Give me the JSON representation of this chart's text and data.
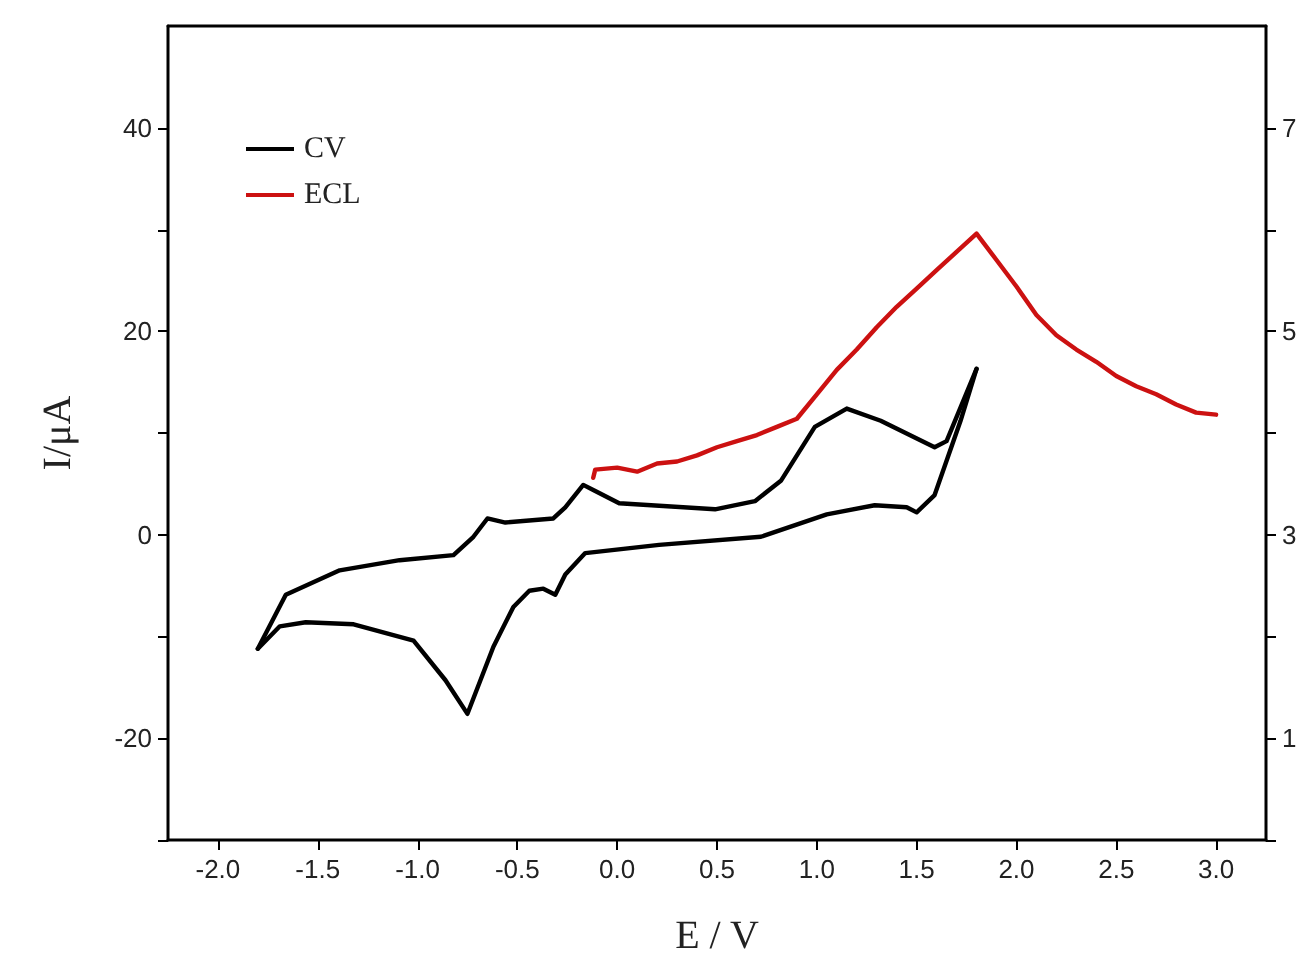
{
  "chart_data": {
    "type": "line",
    "xlabel": "E / V",
    "ylabel": "I/μA",
    "xlim": [
      -2.25,
      3.25
    ],
    "xticks": [
      {
        "value": -2,
        "label": "-2.0"
      },
      -1.5,
      {
        "value": -1,
        "label": "-1.0"
      },
      -0.5,
      {
        "value": 0,
        "label": "0.0"
      },
      0.5,
      {
        "value": 1,
        "label": "1.0"
      },
      1.5,
      {
        "value": 2,
        "label": "2.0"
      },
      2.5,
      {
        "value": 3,
        "label": "3.0"
      }
    ],
    "ylim": [
      -30,
      50
    ],
    "yticks": [
      {
        "value": -30,
        "label": null
      },
      -20,
      {
        "value": -10,
        "label": null
      },
      0,
      {
        "value": 10,
        "label": null
      },
      20,
      {
        "value": 30,
        "label": null
      },
      40
    ],
    "y2lim": [
      0,
      8
    ],
    "y2ticks": [
      {
        "value": 0,
        "label": null
      },
      1,
      {
        "value": 2,
        "label": null
      },
      3,
      {
        "value": 4,
        "label": null
      },
      5,
      {
        "value": 6,
        "label": null
      },
      7
    ],
    "grid": false,
    "legend": "top left",
    "marker": "none",
    "line_style": "solid",
    "series": [
      {
        "name": "CV",
        "color": "#000000",
        "x": [
          -1.8,
          -1.66,
          -1.39,
          -1.09,
          -0.82,
          -0.72,
          -0.65,
          -0.56,
          -0.32,
          -0.26,
          -0.17,
          -0.11,
          0.01,
          0.49,
          0.69,
          0.82,
          0.99,
          1.15,
          1.32,
          1.59,
          1.65,
          1.8
        ],
        "values": [
          -11.2,
          -5.9,
          -3.5,
          -2.5,
          -2.0,
          -0.2,
          1.6,
          1.2,
          1.6,
          2.7,
          4.9,
          4.3,
          3.1,
          2.5,
          3.3,
          5.3,
          10.6,
          12.4,
          11.2,
          8.6,
          9.2,
          16.3
        ]
      },
      {
        "color": "#000000",
        "x": [
          -1.8,
          -1.69,
          -1.56,
          -1.32,
          -1.02,
          -0.86,
          -0.75,
          -0.62,
          -0.52,
          -0.44,
          -0.37,
          -0.31,
          -0.26,
          -0.16,
          0.21,
          0.72,
          1.05,
          1.29,
          1.45,
          1.5,
          1.59,
          1.72,
          1.8
        ],
        "values": [
          -11.2,
          -9.0,
          -8.6,
          -8.8,
          -10.4,
          -14.3,
          -17.6,
          -11.0,
          -7.1,
          -5.5,
          -5.3,
          -5.9,
          -3.9,
          -1.8,
          -1.0,
          -0.2,
          2.0,
          2.9,
          2.7,
          2.2,
          3.9,
          11.2,
          16.3
        ]
      },
      {
        "name": "ECL",
        "color": "#cc1111",
        "axis": "y2",
        "x": [
          -0.12,
          -0.11,
          0.0,
          0.1,
          0.2,
          0.3,
          0.4,
          0.5,
          0.6,
          0.7,
          0.8,
          0.9,
          1.0,
          1.1,
          1.2,
          1.3,
          1.4,
          1.5,
          1.6,
          1.7,
          1.8,
          1.9,
          2.0,
          2.1,
          2.2,
          2.3,
          2.4,
          2.5,
          2.6,
          2.7,
          2.8,
          2.9,
          3.0
        ],
        "values": [
          3.56,
          3.64,
          3.66,
          3.62,
          3.7,
          3.72,
          3.78,
          3.86,
          3.92,
          3.98,
          4.06,
          4.14,
          4.38,
          4.62,
          4.82,
          5.04,
          5.24,
          5.42,
          5.6,
          5.78,
          5.96,
          5.7,
          5.44,
          5.16,
          4.96,
          4.82,
          4.7,
          4.56,
          4.46,
          4.38,
          4.28,
          4.2,
          4.18
        ]
      }
    ]
  }
}
